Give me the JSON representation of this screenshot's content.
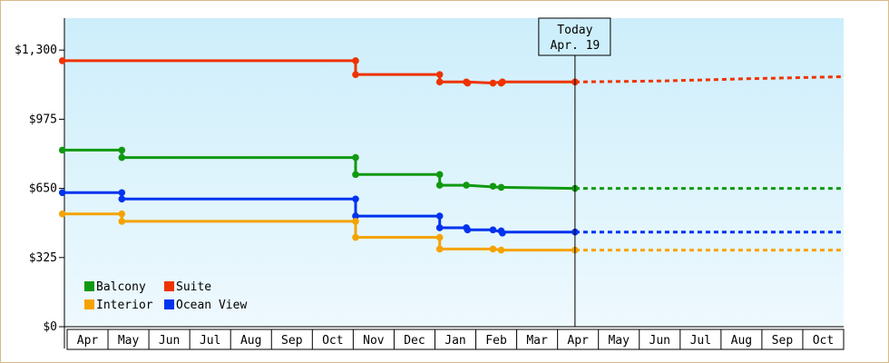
{
  "chart_data": {
    "type": "line",
    "title": "",
    "xlabel": "",
    "ylabel": "",
    "ylim": [
      0,
      1450
    ],
    "y_ticks": [
      {
        "value": 0,
        "label": "$0"
      },
      {
        "value": 325,
        "label": "$325"
      },
      {
        "value": 650,
        "label": "$650"
      },
      {
        "value": 975,
        "label": "$975"
      },
      {
        "value": 1300,
        "label": "$1,300"
      }
    ],
    "x_ticks": [
      "Apr",
      "May",
      "Jun",
      "Jul",
      "Aug",
      "Sep",
      "Oct",
      "Nov",
      "Dec",
      "Jan",
      "Feb",
      "Mar",
      "Apr",
      "May",
      "Jun",
      "Jul",
      "Aug",
      "Sep",
      "Oct"
    ],
    "xlim": [
      0,
      19
    ],
    "grid": false,
    "background": {
      "top": "#cdeefb",
      "bottom": "#eef9fe"
    },
    "today": {
      "x": 12.45,
      "label_line1": "Today",
      "label_line2": "Apr. 19"
    },
    "legend": {
      "placement": "bottom-left",
      "items": [
        {
          "name": "Balcony",
          "color": "#119911"
        },
        {
          "name": "Suite",
          "color": "#ee3300"
        },
        {
          "name": "Interior",
          "color": "#f5a300"
        },
        {
          "name": "Ocean View",
          "color": "#0033ee"
        }
      ]
    },
    "series": [
      {
        "name": "Suite",
        "color": "#ee3300",
        "steps": [
          [
            -0.05,
            1250
          ],
          [
            7.1,
            1250
          ],
          [
            7.1,
            1185
          ],
          [
            9.15,
            1185
          ],
          [
            9.15,
            1150
          ],
          [
            9.8,
            1150
          ],
          [
            10.45,
            1145
          ],
          [
            10.65,
            1150
          ],
          [
            12.45,
            1150
          ]
        ],
        "markers": [
          [
            -0.05,
            1250
          ],
          [
            7.1,
            1250
          ],
          [
            7.1,
            1185
          ],
          [
            9.15,
            1185
          ],
          [
            9.15,
            1150
          ],
          [
            9.8,
            1150
          ],
          [
            9.83,
            1145
          ],
          [
            10.45,
            1145
          ],
          [
            10.65,
            1145
          ],
          [
            10.68,
            1150
          ],
          [
            12.45,
            1150
          ]
        ],
        "forecast": [
          [
            12.45,
            1150
          ],
          [
            14.6,
            1155
          ],
          [
            15.6,
            1160
          ],
          [
            16.6,
            1165
          ],
          [
            19.0,
            1175
          ]
        ]
      },
      {
        "name": "Balcony",
        "color": "#119911",
        "steps": [
          [
            -0.05,
            830
          ],
          [
            1.4,
            830
          ],
          [
            1.4,
            795
          ],
          [
            7.1,
            795
          ],
          [
            7.1,
            715
          ],
          [
            9.15,
            715
          ],
          [
            9.15,
            665
          ],
          [
            9.8,
            665
          ],
          [
            10.6,
            655
          ],
          [
            12.45,
            650
          ]
        ],
        "markers": [
          [
            -0.05,
            830
          ],
          [
            1.4,
            830
          ],
          [
            1.4,
            795
          ],
          [
            7.1,
            795
          ],
          [
            7.1,
            715
          ],
          [
            9.15,
            715
          ],
          [
            9.15,
            665
          ],
          [
            9.8,
            665
          ],
          [
            10.45,
            660
          ],
          [
            10.65,
            655
          ],
          [
            12.45,
            650
          ]
        ],
        "forecast": [
          [
            12.45,
            650
          ],
          [
            19.0,
            650
          ]
        ]
      },
      {
        "name": "Ocean View",
        "color": "#0033ee",
        "steps": [
          [
            -0.05,
            630
          ],
          [
            1.4,
            630
          ],
          [
            1.4,
            600
          ],
          [
            7.1,
            600
          ],
          [
            7.1,
            520
          ],
          [
            9.15,
            520
          ],
          [
            9.15,
            465
          ],
          [
            9.8,
            465
          ],
          [
            9.8,
            455
          ],
          [
            10.45,
            455
          ],
          [
            10.65,
            445
          ],
          [
            12.45,
            445
          ]
        ],
        "markers": [
          [
            -0.05,
            630
          ],
          [
            1.4,
            630
          ],
          [
            1.4,
            600
          ],
          [
            7.1,
            600
          ],
          [
            7.1,
            520
          ],
          [
            9.15,
            520
          ],
          [
            9.15,
            465
          ],
          [
            9.8,
            465
          ],
          [
            9.83,
            455
          ],
          [
            10.45,
            455
          ],
          [
            10.65,
            450
          ],
          [
            10.68,
            440
          ],
          [
            12.45,
            445
          ]
        ],
        "forecast": [
          [
            12.45,
            445
          ],
          [
            19.0,
            445
          ]
        ]
      },
      {
        "name": "Interior",
        "color": "#f5a300",
        "steps": [
          [
            -0.05,
            530
          ],
          [
            1.4,
            530
          ],
          [
            1.4,
            495
          ],
          [
            7.1,
            495
          ],
          [
            7.1,
            420
          ],
          [
            9.15,
            420
          ],
          [
            9.15,
            365
          ],
          [
            10.45,
            365
          ],
          [
            10.65,
            360
          ],
          [
            12.45,
            360
          ]
        ],
        "markers": [
          [
            -0.05,
            530
          ],
          [
            1.4,
            530
          ],
          [
            1.4,
            495
          ],
          [
            7.1,
            495
          ],
          [
            7.1,
            420
          ],
          [
            9.15,
            420
          ],
          [
            9.15,
            365
          ],
          [
            10.45,
            365
          ],
          [
            10.65,
            360
          ],
          [
            12.45,
            360
          ]
        ],
        "forecast": [
          [
            12.45,
            360
          ],
          [
            19.0,
            360
          ]
        ]
      }
    ]
  }
}
